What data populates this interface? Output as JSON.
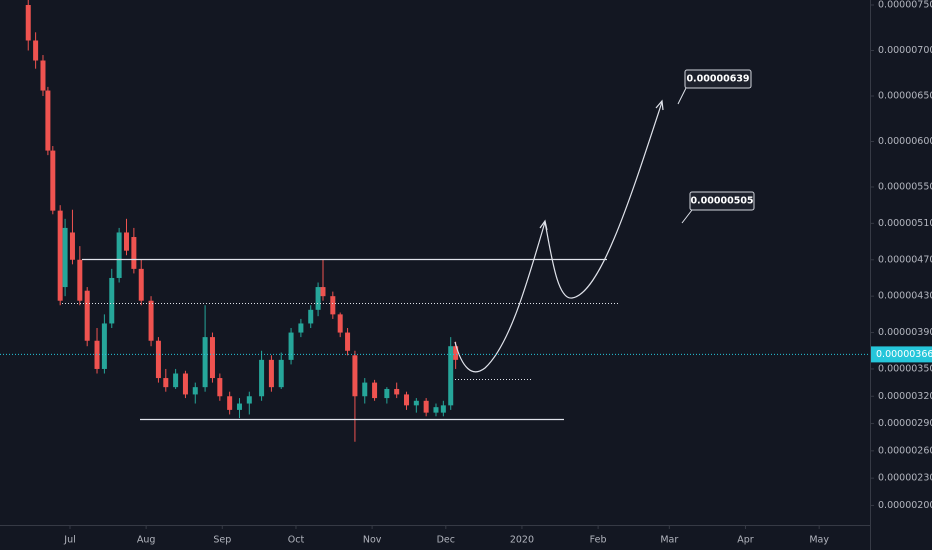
{
  "chart_data": {
    "type": "candlestick",
    "up_color": "#26a69a",
    "down_color": "#ef5350",
    "x": [
      -17,
      -14,
      -11,
      -9,
      -7,
      -4,
      -2,
      1,
      4,
      7,
      11,
      14,
      17,
      20,
      23,
      26,
      29,
      33,
      36,
      39,
      43,
      47,
      51,
      55,
      58,
      61,
      65,
      69,
      73,
      78,
      82,
      86,
      90,
      94,
      98,
      101,
      103,
      107,
      110,
      113,
      116,
      120,
      124,
      129,
      133,
      137,
      141,
      145,
      149,
      152,
      155,
      157
    ],
    "open": [
      7.5e-06,
      7.11e-06,
      6.89e-06,
      6.56e-06,
      5.9e-06,
      5.24e-06,
      4.4e-06,
      5e-06,
      4.7e-06,
      4.36e-06,
      3.81e-06,
      3.5e-06,
      4e-06,
      4.5e-06,
      5e-06,
      4.95e-06,
      4.6e-06,
      4.25e-06,
      3.81e-06,
      3.4e-06,
      3.3e-06,
      3.45e-06,
      3.22e-06,
      3.3e-06,
      3.85e-06,
      3.4e-06,
      3.2e-06,
      3.05e-06,
      3.12e-06,
      3.2e-06,
      3.6e-06,
      3.3e-06,
      3.6e-06,
      3.9e-06,
      4e-06,
      4.15e-06,
      4.4e-06,
      4.3e-06,
      4.1e-06,
      3.9e-06,
      3.65e-06,
      3.2e-06,
      3.35e-06,
      3.18e-06,
      3.28e-06,
      3.22e-06,
      3.1e-06,
      3.15e-06,
      3.02e-06,
      3.02e-06,
      3.1e-06,
      3.75e-06
    ],
    "high": [
      7.56e-06,
      7.2e-06,
      6.95e-06,
      6.6e-06,
      5.95e-06,
      5.3e-06,
      5.15e-06,
      5.25e-06,
      4.85e-06,
      4.4e-06,
      3.95e-06,
      4.1e-06,
      4.6e-06,
      5.05e-06,
      5.15e-06,
      5.05e-06,
      4.7e-06,
      4.3e-06,
      3.85e-06,
      3.5e-06,
      3.5e-06,
      3.48e-06,
      3.35e-06,
      4.2e-06,
      3.9e-06,
      3.45e-06,
      3.25e-06,
      3.18e-06,
      3.25e-06,
      3.7e-06,
      3.65e-06,
      3.68e-06,
      3.95e-06,
      4.05e-06,
      4.2e-06,
      4.45e-06,
      4.7e-06,
      4.35e-06,
      4.12e-06,
      3.95e-06,
      3.7e-06,
      3.4e-06,
      3.38e-06,
      3.3e-06,
      3.35e-06,
      3.25e-06,
      3.18e-06,
      3.18e-06,
      3.12e-06,
      3.15e-06,
      3.85e-06,
      3.8e-06
    ],
    "low": [
      7e-06,
      6.8e-06,
      6.5e-06,
      5.85e-06,
      5.2e-06,
      4.2e-06,
      4.3e-06,
      4.65e-06,
      4.2e-06,
      3.75e-06,
      3.45e-06,
      3.45e-06,
      3.95e-06,
      4.45e-06,
      4.75e-06,
      4.55e-06,
      4.2e-06,
      3.75e-06,
      3.35e-06,
      3.25e-06,
      3.28e-06,
      3.18e-06,
      3.12e-06,
      3.25e-06,
      3.35e-06,
      3.15e-06,
      3e-06,
      2.96e-06,
      3e-06,
      3.15e-06,
      3.25e-06,
      3.28e-06,
      3.55e-06,
      3.85e-06,
      3.95e-06,
      4.08e-06,
      4.25e-06,
      4.05e-06,
      3.85e-06,
      3.65e-06,
      2.7e-06,
      3.12e-06,
      3.15e-06,
      3.12e-06,
      3.18e-06,
      3.05e-06,
      3.02e-06,
      2.98e-06,
      2.98e-06,
      2.98e-06,
      3.05e-06,
      3.5e-06
    ],
    "close": [
      7.11e-06,
      6.89e-06,
      6.56e-06,
      5.9e-06,
      5.24e-06,
      4.25e-06,
      5.05e-06,
      4.7e-06,
      4.25e-06,
      3.81e-06,
      3.5e-06,
      4e-06,
      4.5e-06,
      5e-06,
      4.8e-06,
      4.6e-06,
      4.25e-06,
      3.81e-06,
      3.4e-06,
      3.3e-06,
      3.45e-06,
      3.22e-06,
      3.3e-06,
      3.85e-06,
      3.4e-06,
      3.2e-06,
      3.05e-06,
      3.12e-06,
      3.2e-06,
      3.6e-06,
      3.3e-06,
      3.6e-06,
      3.9e-06,
      4e-06,
      4.15e-06,
      4.4e-06,
      4.3e-06,
      4.1e-06,
      3.9e-06,
      3.7e-06,
      3.2e-06,
      3.35e-06,
      3.18e-06,
      3.28e-06,
      3.22e-06,
      3.1e-06,
      3.15e-06,
      3.02e-06,
      3.08e-06,
      3.1e-06,
      3.75e-06,
      3.6e-06
    ],
    "xlim": [
      -28.5,
      325.7
    ],
    "xticks": [
      {
        "value": 0,
        "label": "Jul"
      },
      {
        "value": 31,
        "label": "Aug"
      },
      {
        "value": 62,
        "label": "Sep"
      },
      {
        "value": 92,
        "label": "Oct"
      },
      {
        "value": 123,
        "label": "Nov"
      },
      {
        "value": 153,
        "label": "Dec"
      },
      {
        "value": 184,
        "label": "2020"
      },
      {
        "value": 215,
        "label": "Feb"
      },
      {
        "value": 244,
        "label": "Mar"
      },
      {
        "value": 275,
        "label": "Apr"
      },
      {
        "value": 305,
        "label": "May"
      }
    ],
    "ylim": [
      1.785e-06,
      7.555e-06
    ],
    "yticks": [
      {
        "value": 7.5e-06,
        "label": "0.00000750"
      },
      {
        "value": 7e-06,
        "label": "0.00000700"
      },
      {
        "value": 6.5e-06,
        "label": "0.00000650"
      },
      {
        "value": 6e-06,
        "label": "0.00000600"
      },
      {
        "value": 5.5e-06,
        "label": "0.00000550"
      },
      {
        "value": 5.1e-06,
        "label": "0.00000510"
      },
      {
        "value": 4.7e-06,
        "label": "0.00000470"
      },
      {
        "value": 4.3e-06,
        "label": "0.00000430"
      },
      {
        "value": 3.9e-06,
        "label": "0.00000390"
      },
      {
        "value": 3.5e-06,
        "label": "0.00000350"
      },
      {
        "value": 3.2e-06,
        "label": "0.00000320"
      },
      {
        "value": 2.9e-06,
        "label": "0.00000290"
      },
      {
        "value": 2.6e-06,
        "label": "0.00000260"
      },
      {
        "value": 2.3e-06,
        "label": "0.00000230"
      },
      {
        "value": 2e-06,
        "label": "0.00000200"
      }
    ],
    "last_price": {
      "value": 3.66e-06,
      "label": "0.00000366",
      "color": "#26c6da"
    },
    "annotations": [
      {
        "text": "0.00000639"
      },
      {
        "text": "0.00000505"
      }
    ]
  }
}
